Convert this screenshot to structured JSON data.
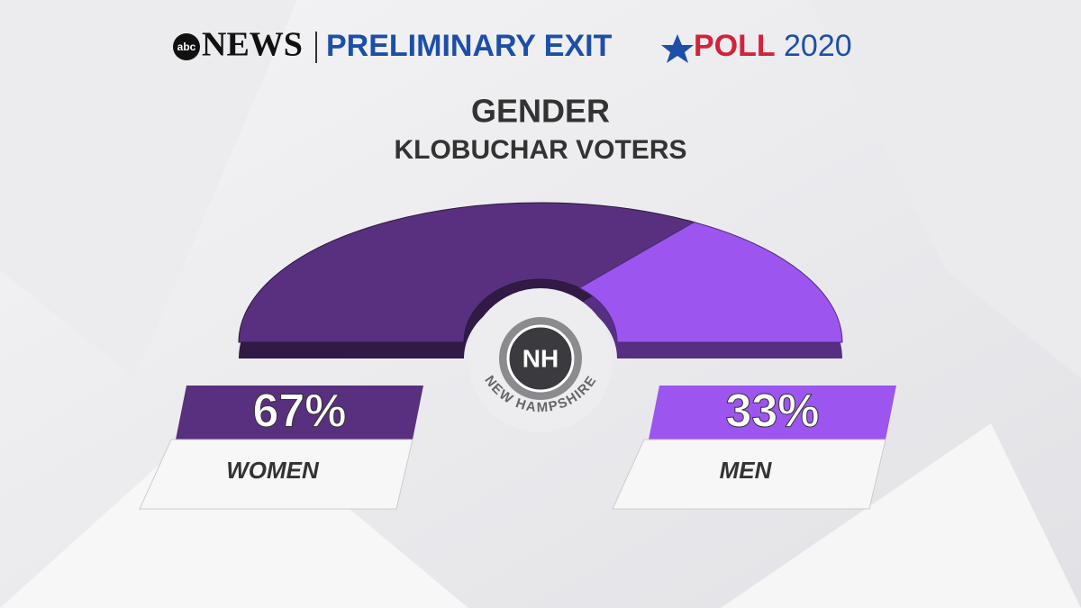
{
  "header": {
    "logo": "abc",
    "brand": "NEWS",
    "title_left": "PRELIMINARY EXIT",
    "title_right": "POLL",
    "year": "2020"
  },
  "badge": {
    "abbr": "NH",
    "name": "NEW HAMPSHIRE"
  },
  "chart_data": {
    "type": "pie",
    "title": "GENDER",
    "subtitle": "KLOBUCHAR VOTERS",
    "categories": [
      "WOMEN",
      "MEN"
    ],
    "values": [
      67,
      33
    ],
    "value_labels": [
      "67%",
      "33%"
    ],
    "colors": [
      "#59307f",
      "#9c55ef"
    ]
  }
}
